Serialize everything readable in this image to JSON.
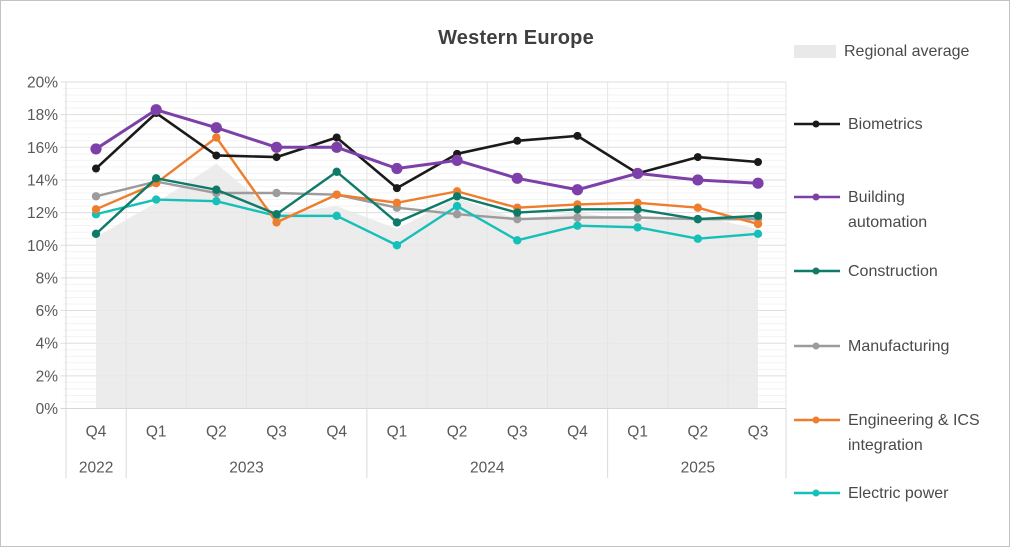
{
  "chart_data": {
    "type": "line",
    "title": "Western Europe",
    "legend_position": "right",
    "grid": true,
    "y_axis": {
      "min": 0,
      "max": 20,
      "step": 2,
      "minor_step": 0.4,
      "tick_labels": [
        "0%",
        "2%",
        "4%",
        "6%",
        "8%",
        "10%",
        "12%",
        "14%",
        "16%",
        "18%",
        "20%"
      ]
    },
    "x_axis": {
      "quarter_labels": [
        "Q4",
        "Q1",
        "Q2",
        "Q3",
        "Q4",
        "Q1",
        "Q2",
        "Q3",
        "Q4",
        "Q1",
        "Q2",
        "Q3"
      ],
      "year_groups": [
        {
          "label": "2022",
          "quarters": 1
        },
        {
          "label": "2023",
          "quarters": 4
        },
        {
          "label": "2024",
          "quarters": 4
        },
        {
          "label": "2025",
          "quarters": 3
        }
      ]
    },
    "area_series": {
      "name": "Regional average",
      "color": "#e9e9e9",
      "values": [
        10.5,
        12.6,
        15.0,
        11.9,
        12.4,
        11.0,
        12.9,
        11.6,
        12.0,
        11.5,
        11.8,
        11.0
      ]
    },
    "series": [
      {
        "name": "Biometrics",
        "color": "#1a1a1a",
        "values": [
          14.7,
          18.1,
          15.5,
          15.4,
          16.6,
          13.5,
          15.6,
          16.4,
          16.7,
          14.4,
          15.4,
          15.1
        ]
      },
      {
        "name": "Building automation",
        "color": "#7d40a8",
        "values": [
          15.9,
          18.3,
          17.2,
          16.0,
          16.0,
          14.7,
          15.2,
          14.1,
          13.4,
          14.4,
          14.0,
          13.8
        ]
      },
      {
        "name": "Construction",
        "color": "#0e7b68",
        "values": [
          10.7,
          14.1,
          13.4,
          11.9,
          14.5,
          11.4,
          13.0,
          12.0,
          12.2,
          12.2,
          11.6,
          11.8
        ]
      },
      {
        "name": "Manufacturing",
        "color": "#9c9c9c",
        "values": [
          13.0,
          13.9,
          13.2,
          13.2,
          13.1,
          12.3,
          11.9,
          11.6,
          11.7,
          11.7,
          11.6,
          11.6
        ]
      },
      {
        "name": "Engineering & ICS integration",
        "color": "#ee7e2e",
        "values": [
          12.2,
          13.8,
          16.6,
          11.4,
          13.1,
          12.6,
          13.3,
          12.3,
          12.5,
          12.6,
          12.3,
          11.3
        ]
      },
      {
        "name": "Electric power",
        "color": "#16c0b9",
        "values": [
          11.9,
          12.8,
          12.7,
          11.8,
          11.8,
          10.0,
          12.4,
          10.3,
          11.2,
          11.1,
          10.4,
          10.7
        ]
      }
    ]
  }
}
